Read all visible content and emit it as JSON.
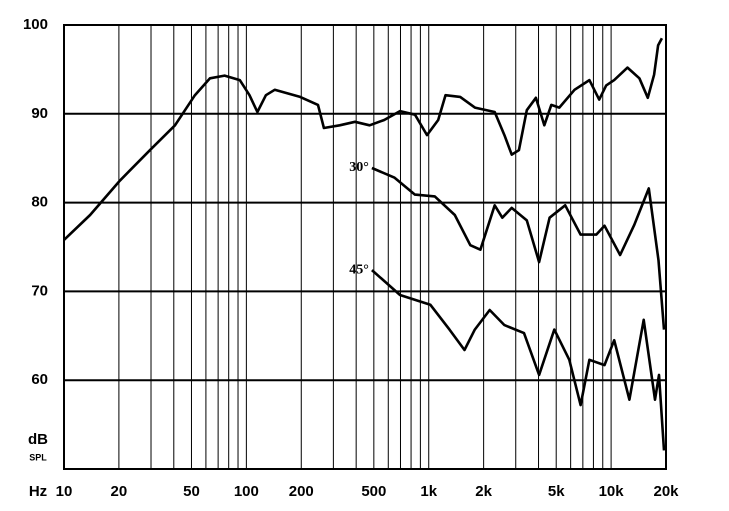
{
  "chart_data": {
    "type": "line",
    "x_label": "Hz",
    "y_label": "dB",
    "y_sublabel": "SPL",
    "xscale": "log",
    "xlim": [
      10,
      20000
    ],
    "ylim": [
      50,
      100
    ],
    "xticks": [
      10,
      20,
      50,
      100,
      200,
      500,
      {
        "value": 1000,
        "label": "1k"
      },
      {
        "value": 2000,
        "label": "2k"
      },
      {
        "value": 5000,
        "label": "5k"
      },
      {
        "value": 10000,
        "label": "10k"
      },
      {
        "value": 20000,
        "label": "20k"
      }
    ],
    "xgrid": [
      20,
      30,
      40,
      50,
      60,
      70,
      80,
      90,
      100,
      200,
      300,
      400,
      500,
      600,
      700,
      800,
      900,
      1000,
      2000,
      3000,
      4000,
      5000,
      6000,
      7000,
      8000,
      9000,
      10000
    ],
    "yticks": [
      60,
      70,
      80,
      90,
      100
    ],
    "grid": true,
    "series": [
      {
        "color": "#000000",
        "x": [
          10,
          13.9,
          20.3,
          29.6,
          40.6,
          52.2,
          63.2,
          76,
          92,
          104,
          115,
          128,
          143,
          197,
          247,
          266,
          325,
          394,
          474,
          570,
          696,
          841,
          978,
          1127,
          1235,
          1487,
          1792,
          2300,
          2600,
          2850,
          3120,
          3450,
          3870,
          4300,
          4700,
          5200,
          6300,
          7600,
          8600,
          9400,
          10400,
          12300,
          14300,
          15900,
          17200,
          18100,
          19000
        ],
        "values": [
          75.8,
          78.6,
          82.5,
          85.9,
          88.7,
          92.1,
          94.0,
          94.3,
          93.8,
          92.1,
          90.2,
          92.1,
          92.7,
          91.9,
          91.0,
          88.4,
          88.7,
          89.1,
          88.7,
          89.3,
          90.3,
          89.9,
          87.6,
          89.3,
          92.1,
          91.9,
          90.7,
          90.2,
          87.6,
          85.4,
          85.9,
          90.4,
          91.8,
          88.7,
          91.0,
          90.7,
          92.7,
          93.8,
          91.6,
          93.2,
          93.8,
          95.2,
          94.0,
          91.8,
          94.4,
          97.7,
          98.5
        ]
      },
      {
        "name": "30°",
        "color": "#000000",
        "x": [
          488,
          650,
          840,
          1080,
          1390,
          1690,
          1920,
          2300,
          2530,
          2850,
          3450,
          4030,
          4600,
          5600,
          6800,
          8300,
          9200,
          11200,
          13400,
          16100,
          18200,
          19500
        ],
        "values": [
          83.9,
          82.8,
          80.9,
          80.7,
          78.6,
          75.2,
          74.7,
          79.7,
          78.3,
          79.4,
          78.0,
          73.3,
          78.3,
          79.7,
          76.4,
          76.4,
          77.4,
          74.1,
          77.5,
          81.6,
          73.5,
          65.7
        ]
      },
      {
        "name": "45°",
        "color": "#000000",
        "x": [
          488,
          696,
          1020,
          1300,
          1570,
          1790,
          2160,
          2600,
          3330,
          4030,
          4880,
          5900,
          6800,
          7600,
          9200,
          10400,
          12600,
          15100,
          17400,
          18300,
          19500
        ],
        "values": [
          72.4,
          69.6,
          68.5,
          65.7,
          63.4,
          65.7,
          67.9,
          66.2,
          65.3,
          60.6,
          65.7,
          62.3,
          57.2,
          62.3,
          61.7,
          64.5,
          57.8,
          66.8,
          57.8,
          60.6,
          52.1
        ]
      }
    ]
  }
}
